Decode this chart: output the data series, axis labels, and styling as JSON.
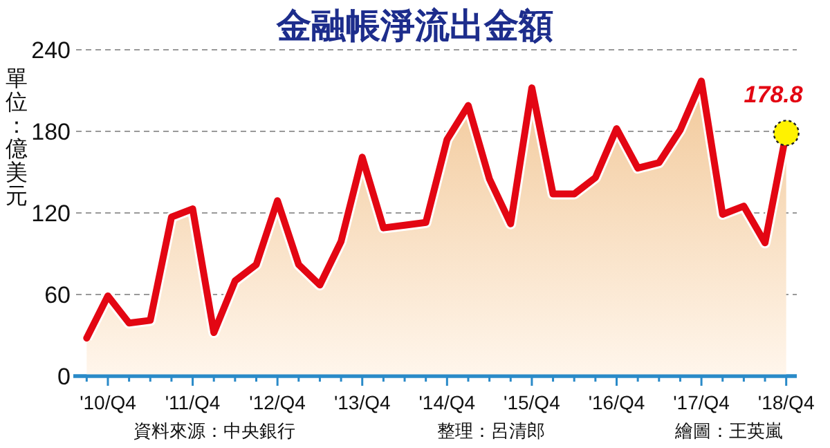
{
  "chart_data": {
    "type": "area",
    "title": "金融帳淨流出金額",
    "ylabel": "單位：億美元",
    "categories": [
      null,
      "'10/Q4",
      null,
      null,
      null,
      "'11/Q4",
      null,
      null,
      null,
      "'12/Q4",
      null,
      null,
      null,
      "'13/Q4",
      null,
      null,
      null,
      "'14/Q4",
      null,
      null,
      null,
      "'15/Q4",
      null,
      null,
      null,
      "'16/Q4",
      null,
      null,
      null,
      "'17/Q4",
      null,
      null,
      null,
      "'18/Q4"
    ],
    "series": [
      {
        "color": "#e30613",
        "values": [
          28,
          59,
          39,
          41,
          117,
          123,
          32,
          70,
          82,
          129,
          82,
          67,
          99,
          161,
          109,
          111,
          113,
          174,
          199,
          145,
          112,
          212,
          134,
          134,
          146,
          182,
          153,
          157,
          181,
          217,
          119,
          125,
          98,
          178.8
        ],
        "value_labels": [
          null,
          null,
          null,
          null,
          null,
          null,
          null,
          null,
          null,
          null,
          null,
          null,
          null,
          null,
          null,
          null,
          null,
          null,
          null,
          null,
          null,
          null,
          null,
          null,
          null,
          null,
          null,
          null,
          null,
          null,
          null,
          null,
          null,
          "178.8"
        ]
      }
    ],
    "ylim": [
      0,
      240
    ],
    "yticks": [
      0,
      60,
      120,
      180,
      240
    ],
    "grid": "y",
    "annotations": [
      "資料來源：中央銀行",
      "整理：呂清郎",
      "繪圖：王英嵐"
    ]
  }
}
